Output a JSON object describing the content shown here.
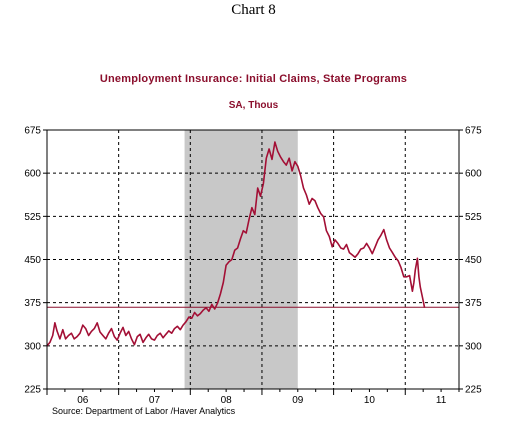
{
  "header": {
    "chart_number": "Chart 8"
  },
  "chart_data": {
    "type": "line",
    "title": "Unemployment Insurance: Initial Claims, State Programs",
    "subtitle": "SA, Thous",
    "source": "Source:  Department of Labor /Haver Analytics",
    "ylim": [
      225,
      675
    ],
    "yticks": [
      225,
      300,
      375,
      450,
      525,
      600,
      675
    ],
    "xlim": [
      2006.0,
      2011.75
    ],
    "x_year_labels": [
      {
        "label": "06",
        "center": 2006.5
      },
      {
        "label": "07",
        "center": 2007.5
      },
      {
        "label": "08",
        "center": 2008.5
      },
      {
        "label": "09",
        "center": 2009.5
      },
      {
        "label": "10",
        "center": 2010.5
      },
      {
        "label": "11",
        "center": 2011.5
      }
    ],
    "grid": "dashed vertical at year boundaries and dashed horizontal at y ticks",
    "recession_shaded": [
      2007.92,
      2009.5
    ],
    "reference_line": {
      "value": 367,
      "color": "#8b0f2d"
    },
    "colors": {
      "series": "#a30f35",
      "shade": "#c8c8c8",
      "text": "#8b0f2d"
    },
    "series": [
      {
        "points": [
          [
            2006.0,
            300
          ],
          [
            2006.04,
            306
          ],
          [
            2006.08,
            318
          ],
          [
            2006.11,
            340
          ],
          [
            2006.14,
            326
          ],
          [
            2006.18,
            312
          ],
          [
            2006.22,
            328
          ],
          [
            2006.26,
            312
          ],
          [
            2006.3,
            318
          ],
          [
            2006.34,
            322
          ],
          [
            2006.38,
            312
          ],
          [
            2006.42,
            316
          ],
          [
            2006.46,
            322
          ],
          [
            2006.5,
            336
          ],
          [
            2006.54,
            330
          ],
          [
            2006.58,
            318
          ],
          [
            2006.62,
            325
          ],
          [
            2006.66,
            330
          ],
          [
            2006.7,
            340
          ],
          [
            2006.74,
            324
          ],
          [
            2006.78,
            318
          ],
          [
            2006.82,
            312
          ],
          [
            2006.86,
            322
          ],
          [
            2006.9,
            330
          ],
          [
            2006.94,
            316
          ],
          [
            2006.98,
            310
          ],
          [
            2007.02,
            322
          ],
          [
            2007.06,
            332
          ],
          [
            2007.1,
            318
          ],
          [
            2007.14,
            325
          ],
          [
            2007.18,
            312
          ],
          [
            2007.22,
            302
          ],
          [
            2007.26,
            316
          ],
          [
            2007.3,
            320
          ],
          [
            2007.34,
            306
          ],
          [
            2007.38,
            314
          ],
          [
            2007.42,
            320
          ],
          [
            2007.46,
            312
          ],
          [
            2007.5,
            310
          ],
          [
            2007.54,
            318
          ],
          [
            2007.58,
            322
          ],
          [
            2007.62,
            314
          ],
          [
            2007.66,
            320
          ],
          [
            2007.7,
            326
          ],
          [
            2007.74,
            322
          ],
          [
            2007.78,
            330
          ],
          [
            2007.82,
            334
          ],
          [
            2007.86,
            328
          ],
          [
            2007.9,
            336
          ],
          [
            2007.94,
            342
          ],
          [
            2007.98,
            350
          ],
          [
            2008.02,
            348
          ],
          [
            2008.06,
            358
          ],
          [
            2008.1,
            352
          ],
          [
            2008.14,
            356
          ],
          [
            2008.18,
            362
          ],
          [
            2008.22,
            366
          ],
          [
            2008.26,
            360
          ],
          [
            2008.3,
            372
          ],
          [
            2008.34,
            364
          ],
          [
            2008.38,
            374
          ],
          [
            2008.42,
            390
          ],
          [
            2008.46,
            410
          ],
          [
            2008.5,
            440
          ],
          [
            2008.54,
            446
          ],
          [
            2008.58,
            450
          ],
          [
            2008.62,
            466
          ],
          [
            2008.66,
            470
          ],
          [
            2008.7,
            486
          ],
          [
            2008.74,
            500
          ],
          [
            2008.78,
            496
          ],
          [
            2008.82,
            520
          ],
          [
            2008.86,
            540
          ],
          [
            2008.9,
            528
          ],
          [
            2008.94,
            574
          ],
          [
            2008.98,
            560
          ],
          [
            2009.02,
            582
          ],
          [
            2009.06,
            626
          ],
          [
            2009.1,
            642
          ],
          [
            2009.14,
            624
          ],
          [
            2009.18,
            654
          ],
          [
            2009.22,
            638
          ],
          [
            2009.26,
            628
          ],
          [
            2009.3,
            620
          ],
          [
            2009.34,
            614
          ],
          [
            2009.38,
            626
          ],
          [
            2009.42,
            604
          ],
          [
            2009.46,
            620
          ],
          [
            2009.5,
            612
          ],
          [
            2009.54,
            596
          ],
          [
            2009.58,
            574
          ],
          [
            2009.62,
            562
          ],
          [
            2009.66,
            546
          ],
          [
            2009.7,
            556
          ],
          [
            2009.74,
            552
          ],
          [
            2009.78,
            540
          ],
          [
            2009.82,
            530
          ],
          [
            2009.86,
            524
          ],
          [
            2009.9,
            500
          ],
          [
            2009.94,
            490
          ],
          [
            2009.98,
            472
          ],
          [
            2010.02,
            484
          ],
          [
            2010.06,
            478
          ],
          [
            2010.1,
            470
          ],
          [
            2010.14,
            468
          ],
          [
            2010.18,
            476
          ],
          [
            2010.22,
            462
          ],
          [
            2010.26,
            458
          ],
          [
            2010.3,
            454
          ],
          [
            2010.34,
            460
          ],
          [
            2010.38,
            468
          ],
          [
            2010.42,
            470
          ],
          [
            2010.46,
            478
          ],
          [
            2010.5,
            470
          ],
          [
            2010.54,
            460
          ],
          [
            2010.58,
            472
          ],
          [
            2010.62,
            484
          ],
          [
            2010.66,
            492
          ],
          [
            2010.7,
            502
          ],
          [
            2010.74,
            484
          ],
          [
            2010.78,
            470
          ],
          [
            2010.82,
            462
          ],
          [
            2010.86,
            454
          ],
          [
            2010.9,
            448
          ],
          [
            2010.94,
            436
          ],
          [
            2010.98,
            420
          ],
          [
            2011.02,
            420
          ],
          [
            2011.06,
            422
          ],
          [
            2011.1,
            395
          ],
          [
            2011.12,
            410
          ],
          [
            2011.14,
            432
          ],
          [
            2011.17,
            452
          ],
          [
            2011.19,
            420
          ],
          [
            2011.21,
            402
          ],
          [
            2011.24,
            384
          ],
          [
            2011.27,
            366
          ]
        ]
      }
    ]
  }
}
